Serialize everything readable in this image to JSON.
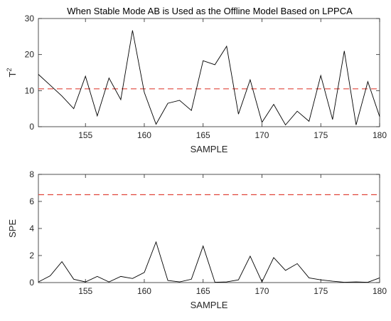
{
  "title": "When Stable Mode AB is Used as the Offline Model Based on LPPCA",
  "chart_data": [
    {
      "type": "line",
      "xlabel": "SAMPLE",
      "ylabel": "T",
      "ylabel_sup": "2",
      "xlim": [
        151,
        180
      ],
      "ylim": [
        0,
        30
      ],
      "xticks": [
        155,
        160,
        165,
        170,
        175,
        180
      ],
      "yticks": [
        0,
        10,
        20,
        30
      ],
      "grid": false,
      "threshold": 10.5,
      "threshold_color": "#e0463c",
      "line_color": "#000000",
      "x": [
        151,
        152,
        153,
        154,
        155,
        156,
        157,
        158,
        159,
        160,
        161,
        162,
        163,
        164,
        165,
        166,
        167,
        168,
        169,
        170,
        171,
        172,
        173,
        174,
        175,
        176,
        177,
        178,
        179,
        180
      ],
      "values": [
        14.5,
        11.5,
        8.5,
        5.0,
        14.0,
        3.0,
        13.5,
        7.5,
        26.7,
        9.5,
        0.7,
        6.5,
        7.3,
        4.5,
        18.3,
        17.2,
        22.3,
        3.5,
        13.0,
        1.2,
        6.2,
        0.5,
        4.3,
        1.5,
        14.2,
        2.0,
        21.0,
        0.5,
        12.5,
        2.8
      ]
    },
    {
      "type": "line",
      "xlabel": "SAMPLE",
      "ylabel": "SPE",
      "xlim": [
        151,
        180
      ],
      "ylim": [
        0,
        8
      ],
      "xticks": [
        155,
        160,
        165,
        170,
        175,
        180
      ],
      "yticks": [
        0,
        2,
        4,
        6,
        8
      ],
      "grid": false,
      "threshold": 6.5,
      "threshold_color": "#e0463c",
      "line_color": "#000000",
      "x": [
        151,
        152,
        153,
        154,
        155,
        156,
        157,
        158,
        159,
        160,
        161,
        162,
        163,
        164,
        165,
        166,
        167,
        168,
        169,
        170,
        171,
        172,
        173,
        174,
        175,
        176,
        177,
        178,
        179,
        180
      ],
      "values": [
        0.05,
        0.5,
        1.55,
        0.25,
        0.05,
        0.45,
        0.05,
        0.45,
        0.3,
        0.75,
        3.0,
        0.15,
        0.05,
        0.25,
        2.7,
        0.02,
        0.05,
        0.2,
        1.95,
        0.05,
        1.85,
        0.9,
        1.4,
        0.35,
        0.2,
        0.1,
        0.02,
        0.05,
        0.02,
        0.35
      ]
    }
  ]
}
